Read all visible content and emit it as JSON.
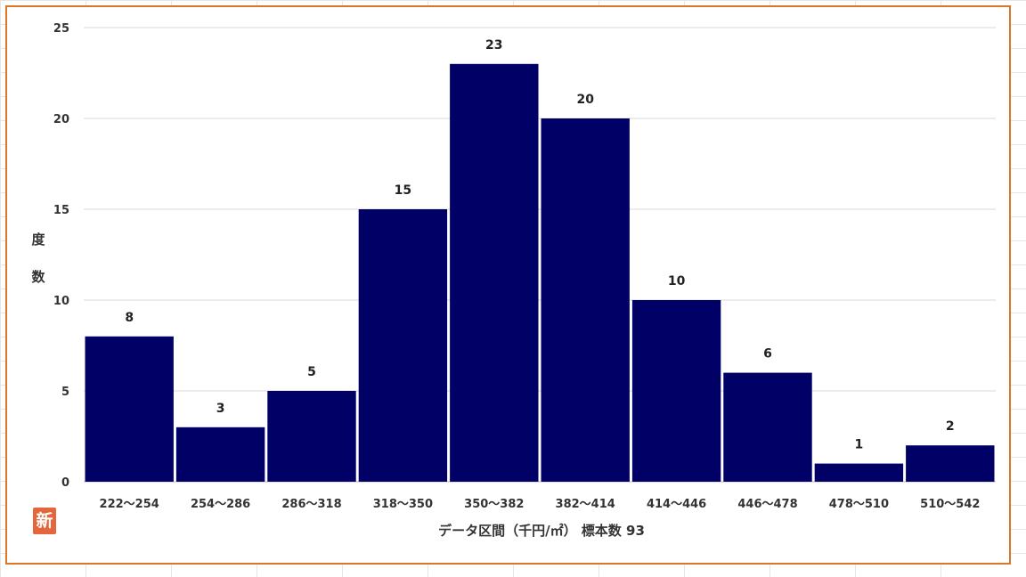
{
  "chart_data": {
    "type": "bar",
    "categories": [
      "222～254",
      "254～286",
      "286～318",
      "318～350",
      "350～382",
      "382～414",
      "414～446",
      "446～478",
      "478～510",
      "510～542"
    ],
    "values": [
      8,
      3,
      5,
      15,
      23,
      20,
      10,
      6,
      1,
      2
    ],
    "xlabel": "データ区間（千円/㎡） 標本数 93",
    "ylabel": "度数",
    "ylim": [
      0,
      25
    ],
    "yticks": [
      0,
      5,
      10,
      15,
      20,
      25
    ],
    "grid": true,
    "bar_color": "#000066",
    "frame_color": "#d9772b"
  },
  "badge": {
    "text": "新",
    "color": "#e4663a"
  }
}
